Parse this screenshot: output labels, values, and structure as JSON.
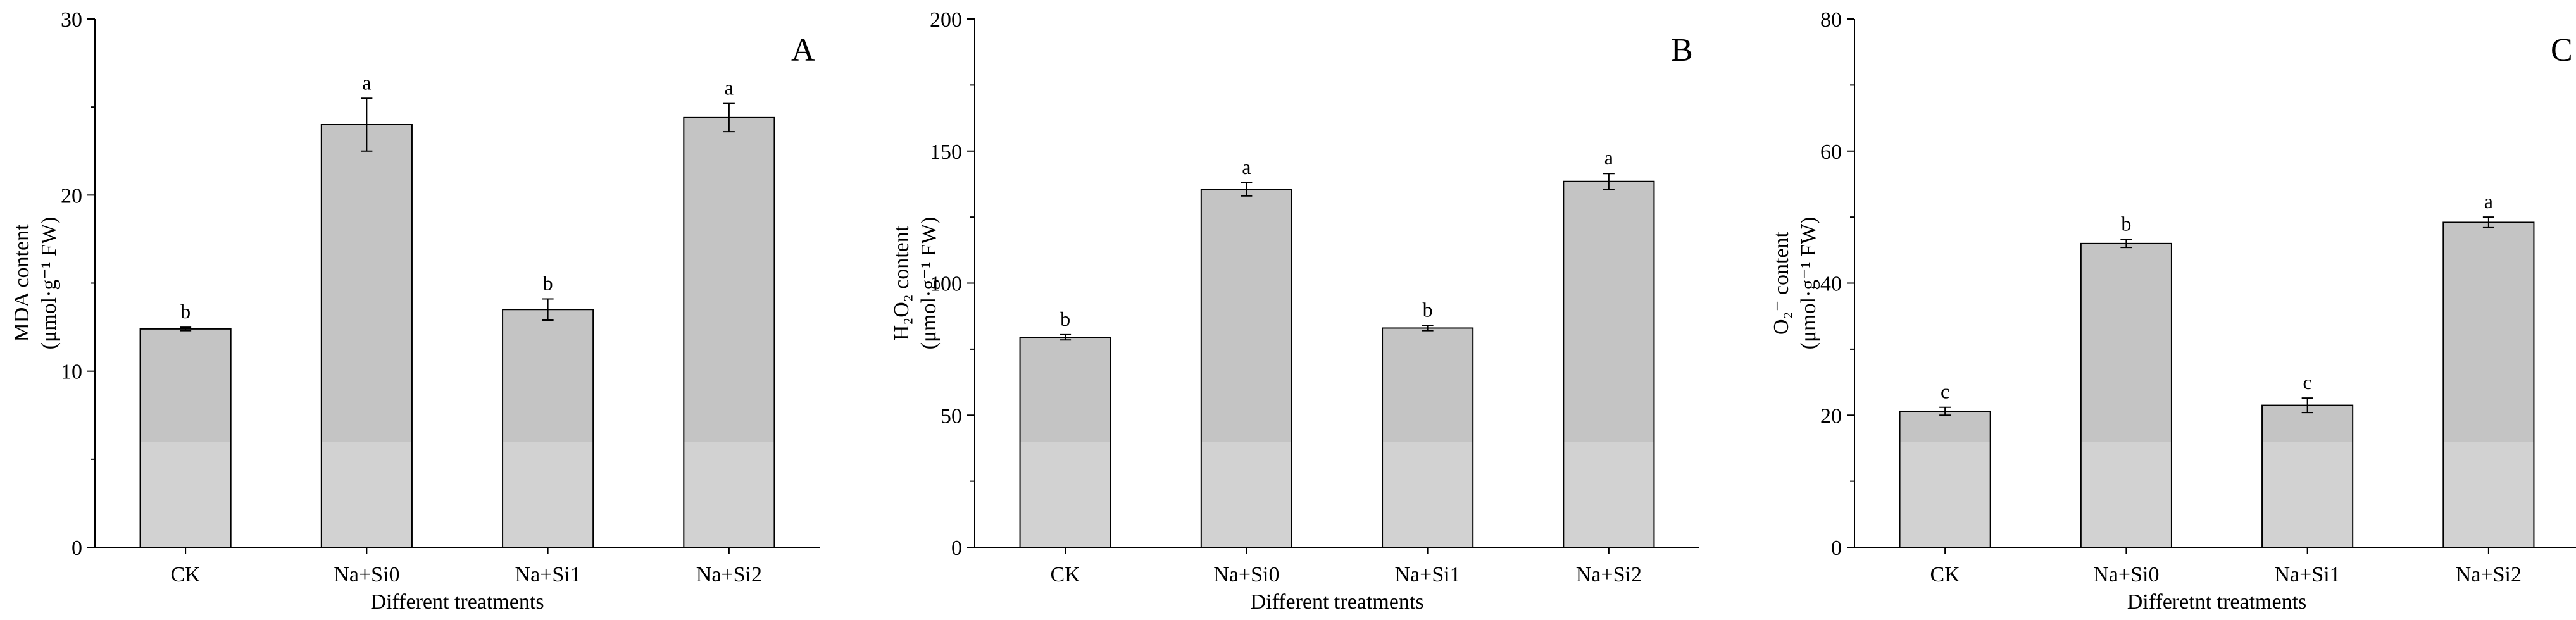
{
  "chart_data": [
    {
      "type": "bar",
      "panel_letter": "A",
      "categories": [
        "CK",
        "Na+Si0",
        "Na+Si1",
        "Na+Si2"
      ],
      "values": [
        12.4,
        24.0,
        13.5,
        24.4
      ],
      "errors": [
        0.1,
        1.5,
        0.6,
        0.8
      ],
      "significance": [
        "b",
        "a",
        "b",
        "a"
      ],
      "ylim": [
        0,
        30
      ],
      "yticks": [
        0,
        10,
        20,
        30
      ],
      "ylabel": {
        "line1": "MDA content",
        "line2": "(μmol·g⁻¹ FW)"
      },
      "xlabel": "Different treatments",
      "bar_color": "#c4c4c4"
    },
    {
      "type": "bar",
      "panel_letter": "B",
      "categories": [
        "CK",
        "Na+Si0",
        "Na+Si1",
        "Na+Si2"
      ],
      "values": [
        79.5,
        135.5,
        83.0,
        138.5
      ],
      "errors": [
        1.0,
        2.5,
        1.0,
        3.0
      ],
      "significance": [
        "b",
        "a",
        "b",
        "a"
      ],
      "ylim": [
        0,
        200
      ],
      "yticks": [
        0,
        50,
        100,
        150,
        200
      ],
      "ylabel": {
        "line1": "H₂O₂ content",
        "line2": "(μmol·g⁻¹ FW)"
      },
      "xlabel": "Different treatments",
      "bar_color": "#c4c4c4"
    },
    {
      "type": "bar",
      "panel_letter": "C",
      "categories": [
        "CK",
        "Na+Si0",
        "Na+Si1",
        "Na+Si2"
      ],
      "values": [
        20.6,
        46.0,
        21.5,
        49.2
      ],
      "errors": [
        0.6,
        0.6,
        1.1,
        0.8
      ],
      "significance": [
        "c",
        "b",
        "c",
        "a"
      ],
      "ylim": [
        0,
        80
      ],
      "yticks": [
        0,
        20,
        40,
        60,
        80
      ],
      "ylabel": {
        "line1": "O₂⁻ content",
        "line2": "(μmol·g⁻¹ FW)"
      },
      "xlabel": "Differetnt treatments",
      "bar_color": "#c4c4c4"
    }
  ]
}
